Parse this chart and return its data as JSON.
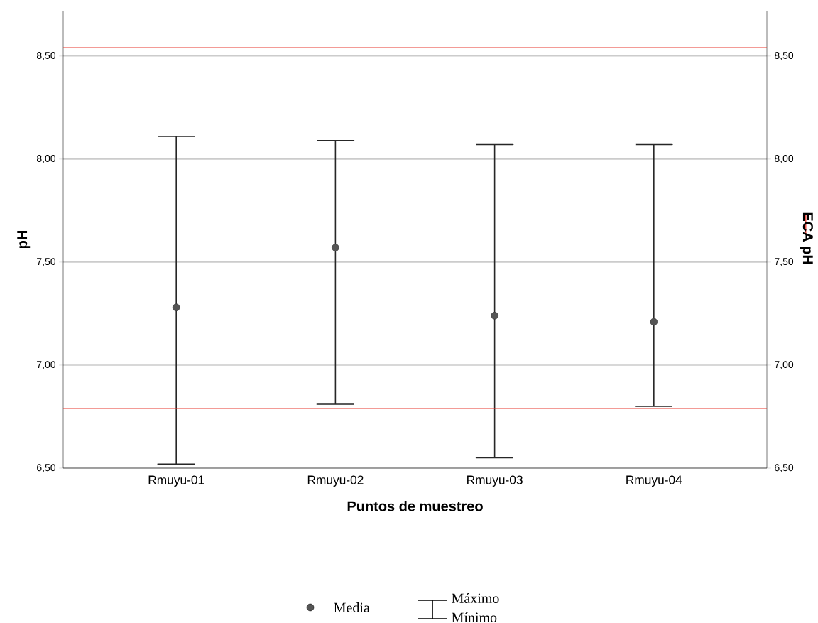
{
  "chart_data": {
    "type": "scatter",
    "xlabel": "Puntos de muestreo",
    "ylabel": "pH",
    "y2label": "ECA pH",
    "categories": [
      "Rmuyu-01",
      "Rmuyu-02",
      "Rmuyu-03",
      "Rmuyu-04"
    ],
    "series": [
      {
        "name": "Media",
        "color": "#555555",
        "values": [
          7.28,
          7.57,
          7.24,
          7.21
        ],
        "errors": [
          [
            6.52,
            8.11
          ],
          [
            6.81,
            8.09
          ],
          [
            6.55,
            8.07
          ],
          [
            6.8,
            8.07
          ]
        ]
      }
    ],
    "marker": "circle",
    "ylim": [
      6.5,
      8.72
    ],
    "yticks": [
      {
        "value": 6.5,
        "label": "6,50"
      },
      {
        "value": 7.0,
        "label": "7,00"
      },
      {
        "value": 7.5,
        "label": "7,50"
      },
      {
        "value": 8.0,
        "label": "8,00"
      },
      {
        "value": 8.5,
        "label": "8,50"
      }
    ],
    "y2lim": [
      6.5,
      8.72
    ],
    "y2ticks": [
      {
        "value": 6.5,
        "label": "6,50"
      },
      {
        "value": 7.0,
        "label": "7,00"
      },
      {
        "value": 7.5,
        "label": "7,50"
      },
      {
        "value": 8.0,
        "label": "8,00"
      },
      {
        "value": 8.5,
        "label": "8,50"
      }
    ],
    "ref_lines": [
      {
        "axis": "y2",
        "value": 8.54,
        "color": "#e8382e"
      },
      {
        "axis": "y2",
        "value": 6.79,
        "color": "#e8382e"
      }
    ],
    "grid": "y",
    "legend": "bottom",
    "annotations": [
      "Máximo",
      "Mínimo"
    ]
  }
}
